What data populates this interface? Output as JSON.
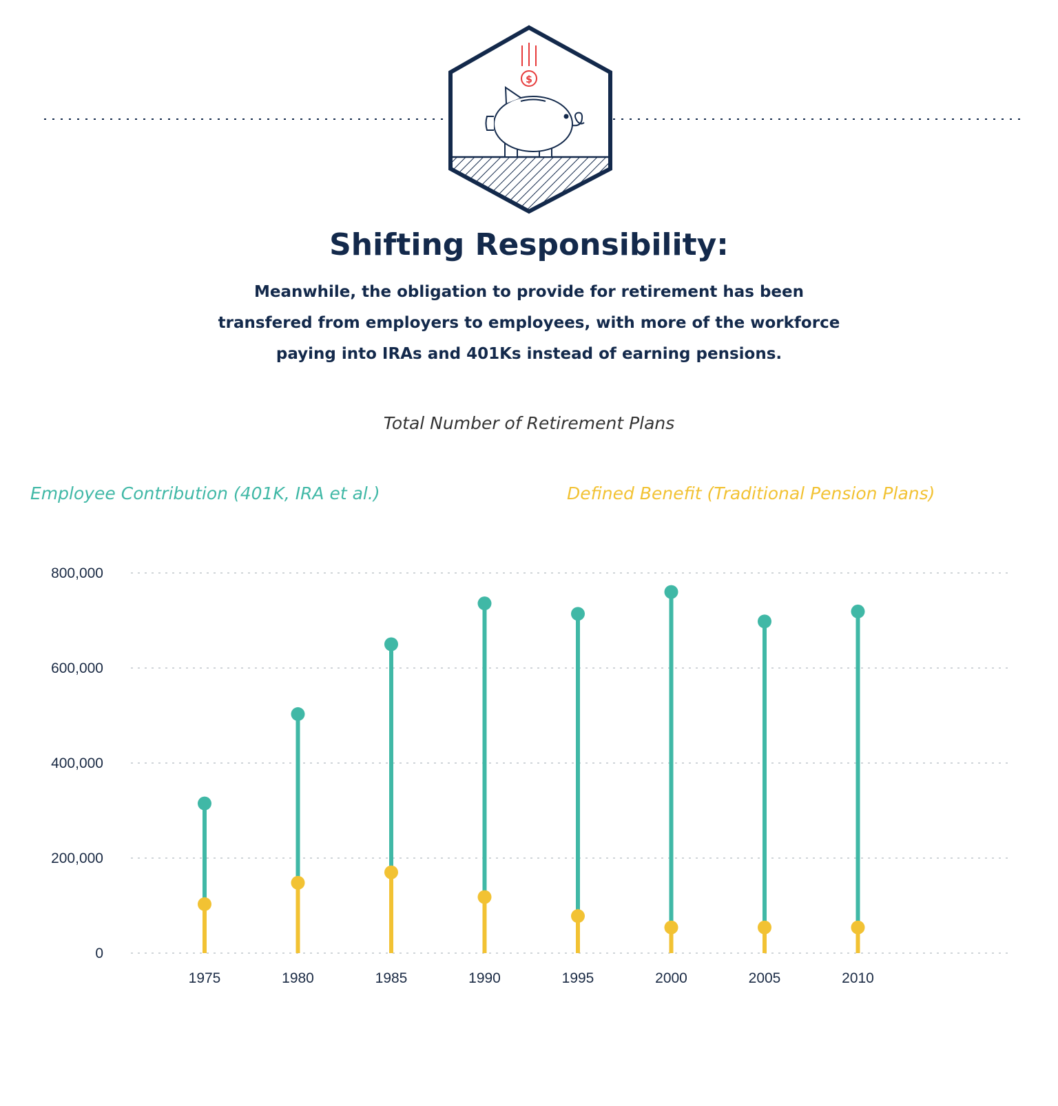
{
  "header": {
    "title": "Shifting Responsibility:",
    "subtitle_lines": [
      "Meanwhile, the obligation to provide for retirement has been",
      "transfered from employers to employees, with more of the workforce",
      "paying into IRAs and 401Ks instead of earning pensions."
    ],
    "icon": "piggy-bank-icon",
    "colors": {
      "navy": "#13294b",
      "red": "#e63a3a"
    }
  },
  "chart_data": {
    "type": "lollipop",
    "title": "Total Number of Retirement Plans",
    "categories": [
      "1975",
      "1980",
      "1985",
      "1990",
      "1995",
      "2000",
      "2005",
      "2010"
    ],
    "series": [
      {
        "name": "Employee Contribution (401K, IRA et al.)",
        "color": "#40b8a6",
        "values": [
          315000,
          503000,
          650000,
          736000,
          714000,
          760000,
          698000,
          719000
        ]
      },
      {
        "name": "Defined Benefit (Traditional Pension Plans)",
        "color": "#f2c233",
        "values": [
          103000,
          148000,
          170000,
          118000,
          78000,
          54000,
          54000,
          54000
        ]
      }
    ],
    "yticks": [
      "0",
      "200,000",
      "400,000",
      "600,000",
      "800,000"
    ],
    "ylim": [
      0,
      800000
    ],
    "grid": true,
    "legend_position": "top"
  }
}
